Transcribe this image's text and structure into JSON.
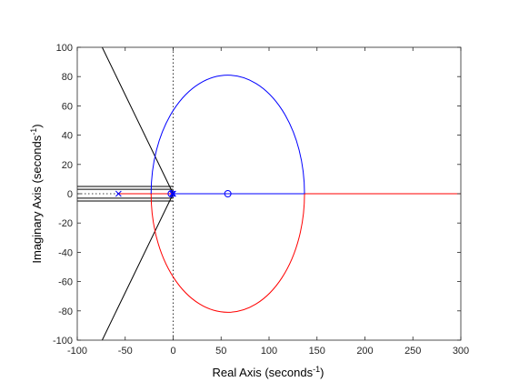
{
  "chart_data": {
    "type": "line",
    "title": "",
    "xlabel": "Real Axis (seconds",
    "ylabel": "Imaginary Axis (seconds",
    "unit_exponent": "-1",
    "unit_close": ")",
    "xlim": [
      -100,
      300
    ],
    "ylim": [
      -100,
      100
    ],
    "x_ticks": [
      -100,
      -50,
      0,
      50,
      100,
      150,
      200,
      250,
      300
    ],
    "y_ticks": [
      -100,
      -80,
      -60,
      -40,
      -20,
      0,
      20,
      40,
      60,
      80,
      100
    ],
    "grid": false,
    "colors": {
      "blue": "#0000ff",
      "red": "#ff0000",
      "black": "#000000"
    },
    "root_locus": {
      "circle_center": [
        57,
        0
      ],
      "circle_radius_x": 80,
      "circle_radius_y": 81,
      "upper_branch_color": "blue",
      "lower_branch_color": "red",
      "real_axis_blue": [
        [
          -2,
          57
        ],
        [
          57,
          137
        ]
      ],
      "real_axis_red": [
        [
          -57,
          -2
        ],
        [
          137,
          300
        ]
      ]
    },
    "poles": [
      [
        -57,
        0
      ],
      [
        -1,
        0
      ],
      [
        0,
        0
      ]
    ],
    "zeros": [
      [
        57,
        0
      ],
      [
        -2,
        0
      ]
    ],
    "damping_lines": [
      {
        "from": [
          0,
          0
        ],
        "to": [
          -74,
          100
        ]
      },
      {
        "from": [
          0,
          0
        ],
        "to": [
          -74,
          -100
        ]
      }
    ],
    "horizontal_lines": [
      [
        -100,
        5
      ],
      [
        -100,
        3
      ],
      [
        -100,
        -3
      ],
      [
        -100,
        -5
      ]
    ]
  }
}
